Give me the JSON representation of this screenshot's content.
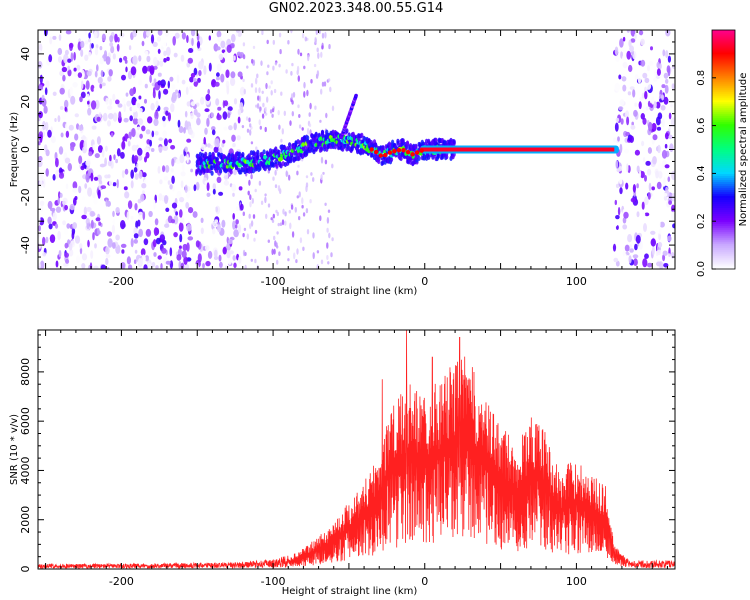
{
  "title": "GN02.2023.348.00.55.G14",
  "chart_data": [
    {
      "type": "heatmap",
      "xlabel": "Height of straight line (km)",
      "ylabel": "Frequency (Hz)",
      "xlim": [
        -255,
        165
      ],
      "ylim": [
        -50,
        50
      ],
      "xticks": [
        -200,
        -100,
        0,
        100
      ],
      "yticks": [
        -40,
        -20,
        0,
        20,
        40
      ],
      "colorbar": {
        "label": "Normalized spectral amplitude",
        "range": [
          0,
          1
        ],
        "ticks": [
          "0.0",
          "0.2",
          "0.4",
          "0.6",
          "0.8"
        ],
        "colors": [
          "#ffffff",
          "#c8a8ff",
          "#7a00ff",
          "#1400ff",
          "#00d8ff",
          "#00ff80",
          "#30ff00",
          "#ffff00",
          "#ff8000",
          "#ff0000",
          "#ff0090"
        ]
      },
      "ridge": {
        "x": [
          -150,
          -130,
          -110,
          -100,
          -90,
          -80,
          -70,
          -60,
          -52,
          -45,
          -38,
          -32,
          -28,
          -22,
          -15,
          -8,
          0,
          20,
          60,
          100,
          120
        ],
        "y": [
          -6,
          -6,
          -5,
          -4,
          -2,
          1,
          3,
          4,
          4,
          3,
          1,
          -1,
          -3,
          -1,
          0,
          -2,
          0,
          0,
          0,
          0,
          0
        ]
      },
      "noise_columns_x": [
        [
          -255,
          -120
        ],
        [
          125,
          165
        ]
      ]
    },
    {
      "type": "line",
      "xlabel": "Height of straight line (km)",
      "ylabel": "SNR (10 * v/v)",
      "xlim": [
        -255,
        165
      ],
      "ylim": [
        0,
        9700
      ],
      "xticks": [
        -200,
        -100,
        0,
        100
      ],
      "yticks": [
        0,
        2000,
        4000,
        6000,
        8000
      ],
      "series_color": "#ff2020",
      "envelope": {
        "x": [
          -255,
          -200,
          -150,
          -120,
          -100,
          -90,
          -80,
          -70,
          -60,
          -50,
          -40,
          -30,
          -25,
          -15,
          -10,
          0,
          10,
          20,
          25,
          30,
          35,
          40,
          50,
          60,
          70,
          75,
          80,
          90,
          95,
          100,
          110,
          120,
          125,
          135,
          150,
          165
        ],
        "y": [
          150,
          150,
          180,
          200,
          280,
          400,
          700,
          1100,
          1600,
          2300,
          3000,
          4000,
          5200,
          6000,
          6300,
          6000,
          6500,
          7000,
          7300,
          7000,
          6400,
          5700,
          5000,
          4200,
          5200,
          5500,
          4500,
          3200,
          3600,
          3800,
          3200,
          2800,
          800,
          250,
          250,
          250
        ]
      },
      "peaks": [
        {
          "x": -12,
          "y": 9700
        },
        {
          "x": 23,
          "y": 9400
        },
        {
          "x": -28,
          "y": 7700
        },
        {
          "x": 5,
          "y": 8600
        }
      ]
    }
  ]
}
